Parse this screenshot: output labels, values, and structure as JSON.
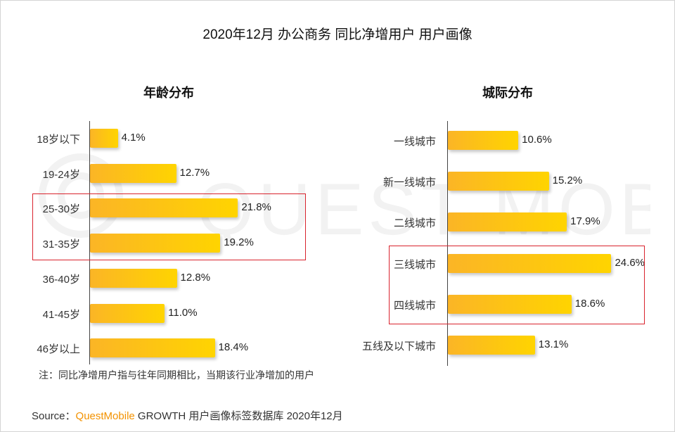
{
  "title": "2020年12月 办公商务 同比净增用户 用户画像",
  "watermark": "QUEST MOBILE",
  "chart_data": [
    {
      "type": "bar",
      "title": "年龄分布",
      "categories": [
        "18岁以下",
        "19-24岁",
        "25-30岁",
        "31-35岁",
        "36-40岁",
        "41-45岁",
        "46岁以上"
      ],
      "values": [
        4.1,
        12.7,
        21.8,
        19.2,
        12.8,
        11.0,
        18.4
      ],
      "value_labels": [
        "4.1%",
        "12.7%",
        "21.8%",
        "19.2%",
        "12.8%",
        "11.0%",
        "18.4%"
      ],
      "unit": "%",
      "orientation": "horizontal",
      "highlighted": [
        "25-30岁",
        "31-35岁"
      ]
    },
    {
      "type": "bar",
      "title": "城际分布",
      "categories": [
        "一线城市",
        "新一线城市",
        "二线城市",
        "三线城市",
        "四线城市",
        "五线及以下城市"
      ],
      "values": [
        10.6,
        15.2,
        17.9,
        24.6,
        18.6,
        13.1
      ],
      "value_labels": [
        "10.6%",
        "15.2%",
        "17.9%",
        "24.6%",
        "18.6%",
        "13.1%"
      ],
      "unit": "%",
      "orientation": "horizontal",
      "highlighted": [
        "三线城市",
        "四线城市"
      ]
    }
  ],
  "note": "注：同比净增用户指与往年同期相比，当期该行业净增加的用户",
  "source": {
    "prefix": "Source：",
    "brand": "QuestMobile",
    "rest": " GROWTH 用户画像标签数据库 2020年12月"
  },
  "colors": {
    "bar_start": "#fbb526",
    "bar_end": "#ffd400",
    "highlight_box": "#d9232d",
    "brand": "#f39200"
  }
}
